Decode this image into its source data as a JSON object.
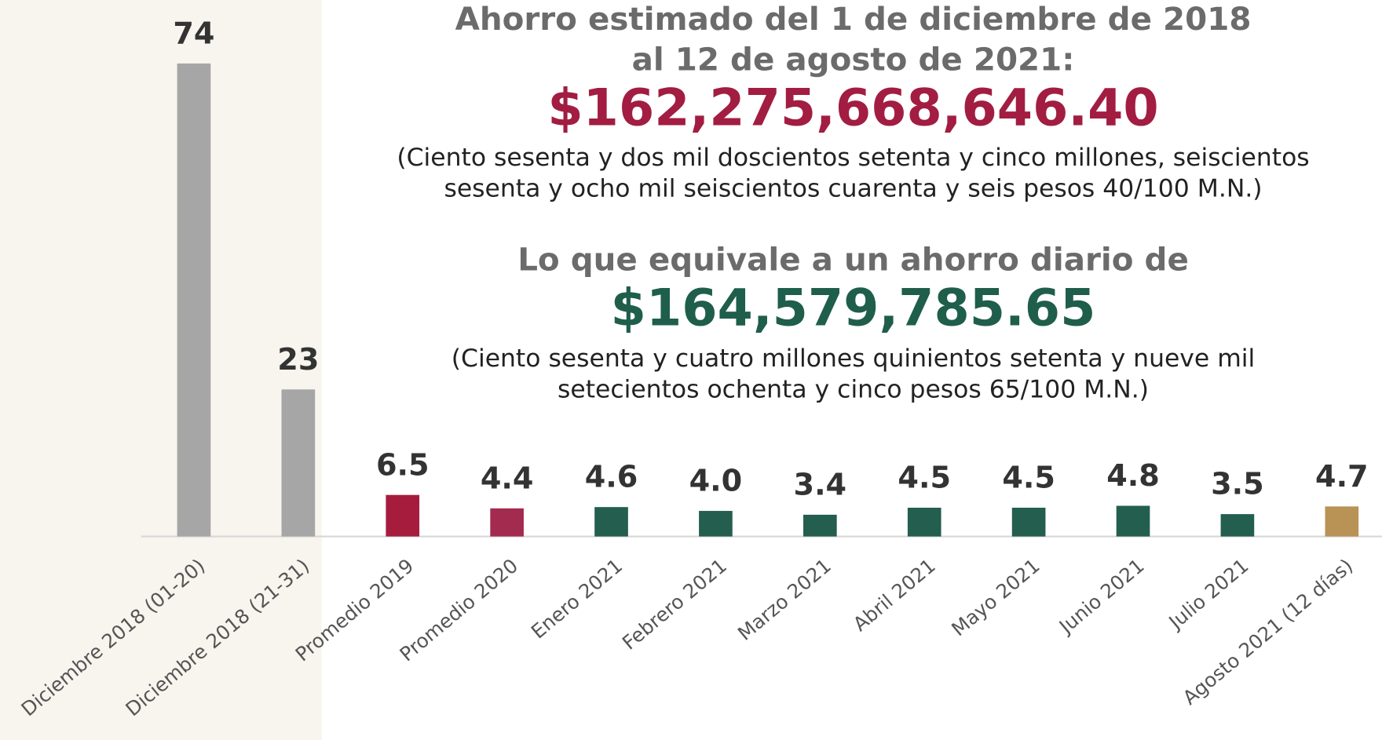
{
  "chart_data": {
    "type": "bar",
    "title_lines": [
      "Ahorro estimado del 1 de diciembre de 2018",
      "al 12 de agosto de 2021:"
    ],
    "total_amount": "$162,275,668,646.40",
    "total_amount_text": [
      "(Ciento sesenta y dos mil doscientos setenta y cinco millones, seiscientos",
      "sesenta y ocho mil seiscientos cuarenta y seis pesos 40/100 M.N.)"
    ],
    "daily_heading": "Lo que equivale a un ahorro diario de",
    "daily_amount": "$164,579,785.65",
    "daily_amount_text": [
      "(Ciento sesenta y cuatro millones  quinientos setenta y nueve mil",
      "setecientos ochenta y cinco pesos 65/100 M.N.)"
    ],
    "categories": [
      "Diciembre 2018 (01-20)",
      "Diciembre 2018 (21-31)",
      "Promedio 2019",
      "Promedio 2020",
      "Enero 2021",
      "Febrero 2021",
      "Marzo 2021",
      "Abril 2021",
      "Mayo 2021",
      "Junio 2021",
      "Julio 2021",
      "Agosto 2021 (12 días)"
    ],
    "values": [
      74,
      23,
      6.5,
      4.4,
      4.6,
      4.0,
      3.4,
      4.5,
      4.5,
      4.8,
      3.5,
      4.7
    ],
    "value_labels": [
      "74",
      "23",
      "6.5",
      "4.4",
      "4.6",
      "4.0",
      "3.4",
      "4.5",
      "4.5",
      "4.8",
      "3.5",
      "4.7"
    ],
    "colors": [
      "#a6a6a6",
      "#a6a6a6",
      "#a61c3c",
      "#a42b50",
      "#235e4f",
      "#235e4f",
      "#235e4f",
      "#235e4f",
      "#235e4f",
      "#235e4f",
      "#235e4f",
      "#b99256"
    ],
    "total_amount_color": "#a21d41",
    "daily_amount_color": "#1f5e4b"
  }
}
